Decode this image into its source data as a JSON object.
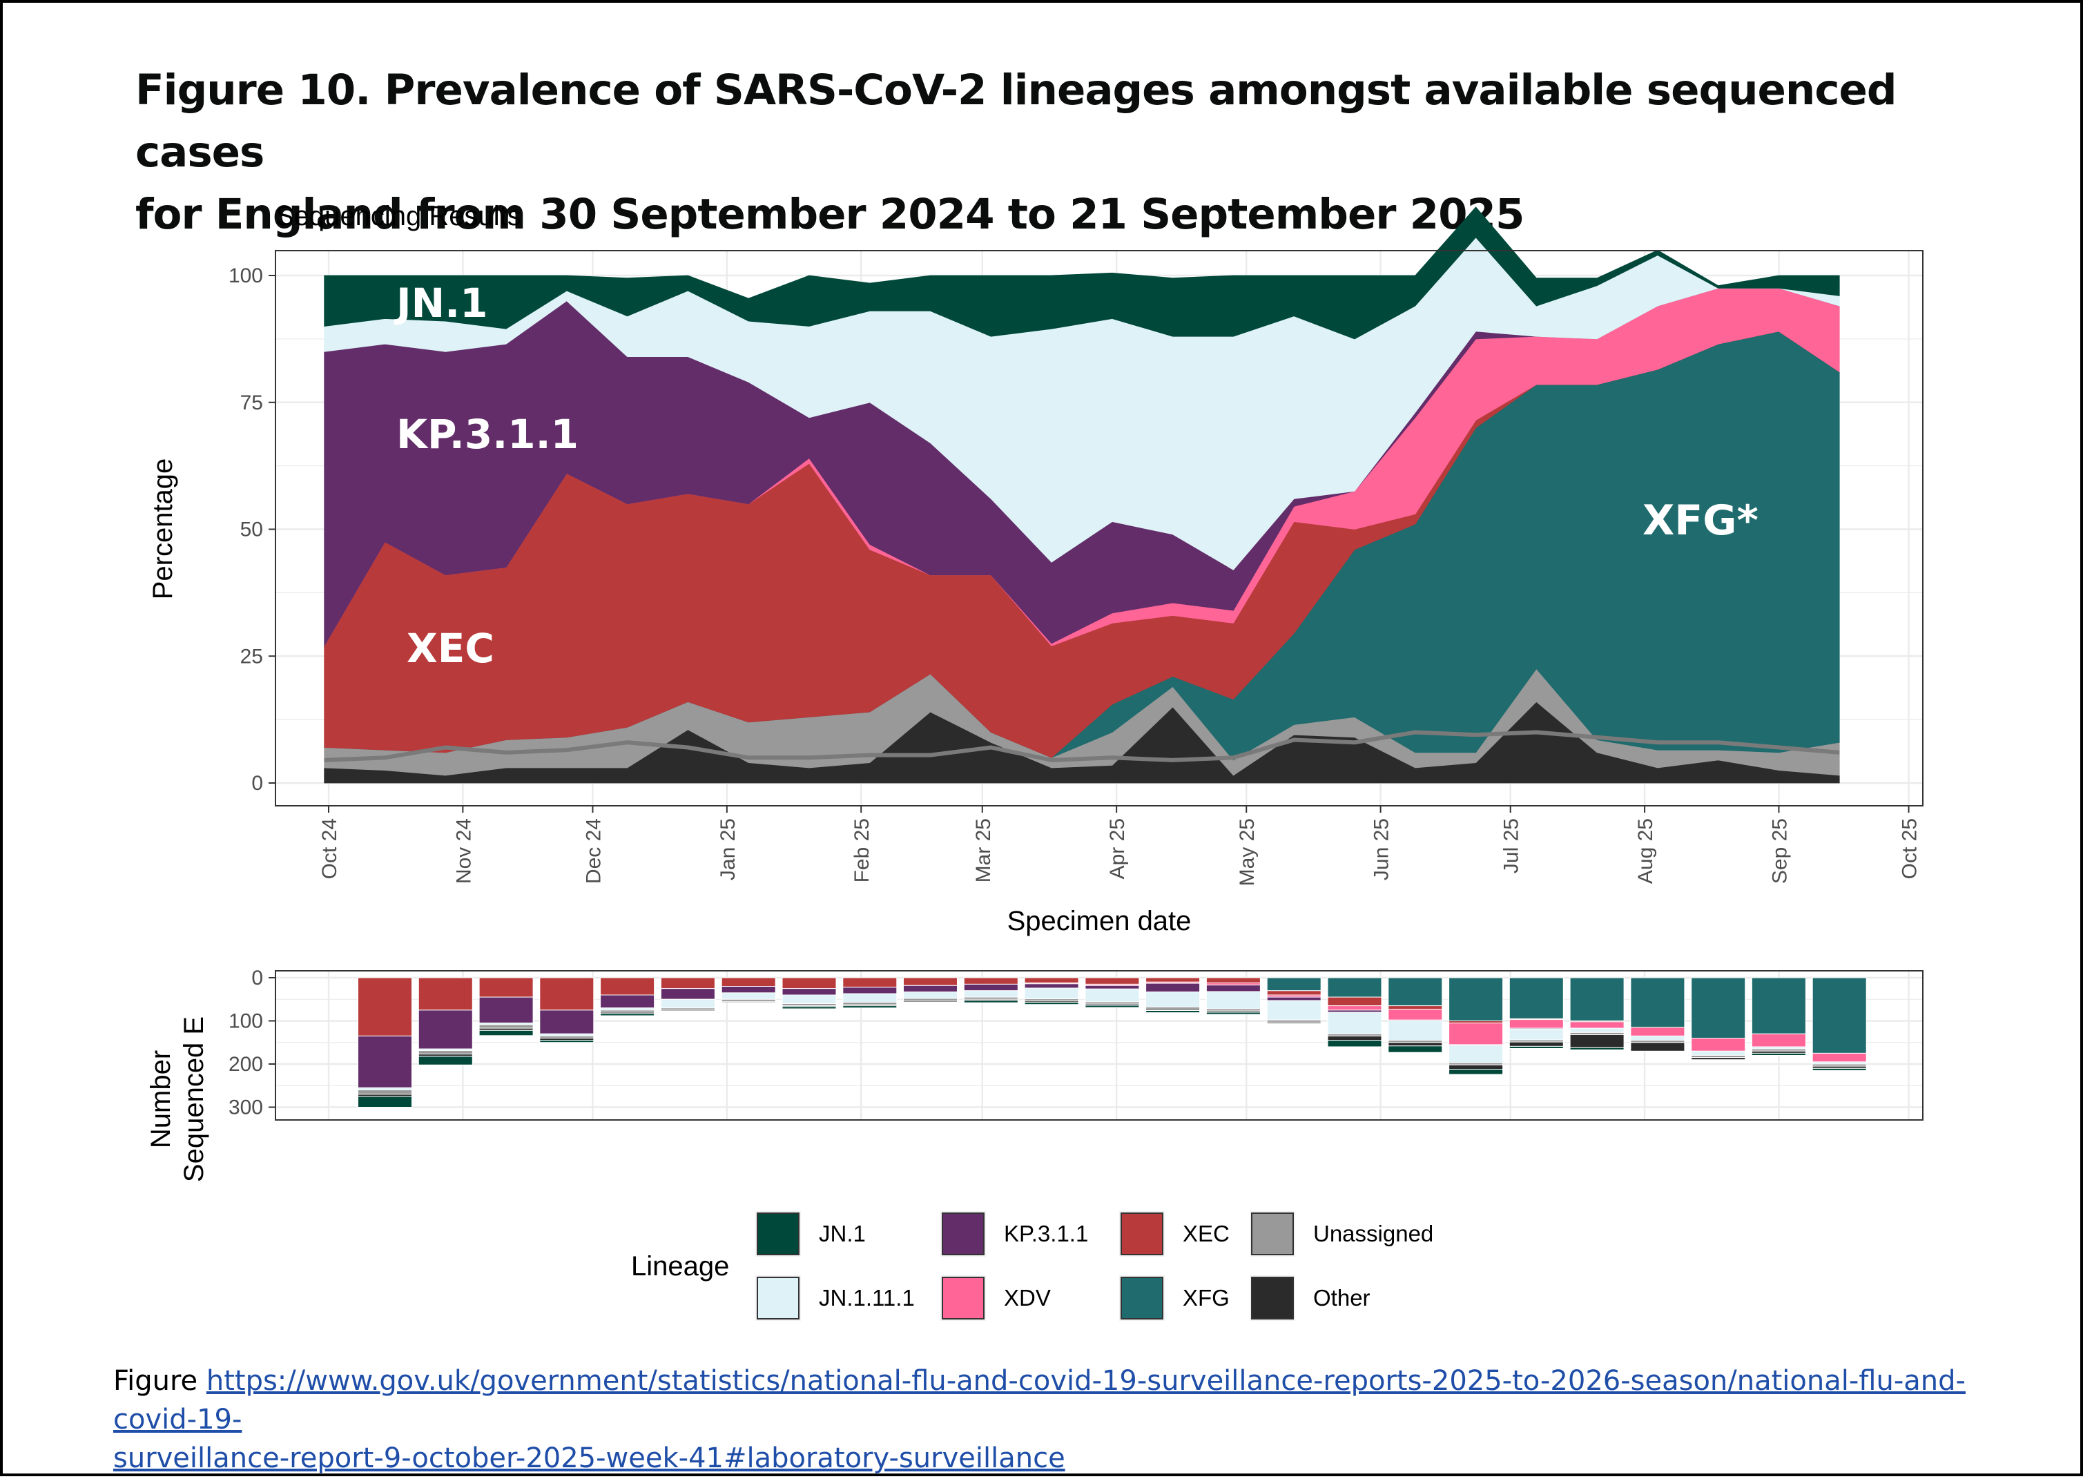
{
  "figure": {
    "title_line1": "Figure 10. Prevalence of SARS-CoV-2 lineages amongst available sequenced cases",
    "title_line2": "for England from 30 September 2024 to 21 September 2025",
    "caption_prefix": "Figure ",
    "caption_link_line1": "https://www.gov.uk/government/statistics/national-flu-and-covid-19-surveillance-reports-2025-to-2026-season/national-flu-and-covid-19-",
    "caption_link_line2": "surveillance-report-9-october-2025-week-41#laboratory-surveillance"
  },
  "colors": {
    "JN.1": "#00483a",
    "JN.1.11.1": "#dff2f7",
    "KP.3.1.1": "#622d69",
    "XDV": "#ff6596",
    "XEC": "#b83a3b",
    "XFG": "#1f6b6d",
    "Unassigned": "#999999",
    "Other": "#2b2b2b",
    "panel_border": "#333333",
    "grid": "#ebebeb",
    "trend_line": "#7a7a7a"
  },
  "chart_data": [
    {
      "type": "area",
      "stacking": "percent",
      "title": "Sequencing Results",
      "xlabel": "Specimen date",
      "ylabel": "Percentage",
      "ylim": [
        0,
        100
      ],
      "yticks": [
        0,
        25,
        50,
        75,
        100
      ],
      "x_tick_labels": [
        "Oct 24",
        "Nov 24",
        "Dec 24",
        "Jan 25",
        "Feb 25",
        "Mar 25",
        "Apr 25",
        "May 25",
        "Jun 25",
        "Jul 25",
        "Aug 25",
        "Sep 25",
        "Oct 25"
      ],
      "x_weeks": [
        "2024-09-30",
        "2024-10-14",
        "2024-10-28",
        "2024-11-11",
        "2024-11-25",
        "2024-12-09",
        "2024-12-23",
        "2025-01-06",
        "2025-01-20",
        "2025-02-03",
        "2025-02-17",
        "2025-03-03",
        "2025-03-17",
        "2025-03-31",
        "2025-04-14",
        "2025-04-28",
        "2025-05-12",
        "2025-05-26",
        "2025-06-09",
        "2025-06-23",
        "2025-07-07",
        "2025-07-21",
        "2025-08-04",
        "2025-08-18",
        "2025-09-01",
        "2025-09-15"
      ],
      "stack_order_bottom_to_top": [
        "Other",
        "Unassigned",
        "XFG",
        "XEC",
        "XDV",
        "KP.3.1.1",
        "JN.1.11.1",
        "JN.1"
      ],
      "series": [
        {
          "name": "Other",
          "values": [
            3,
            2.5,
            1.5,
            3,
            3,
            3,
            10.5,
            4,
            3,
            4,
            14,
            8,
            3,
            3.5,
            15,
            1.5,
            9.5,
            9,
            3,
            4,
            16,
            6,
            3,
            4.5,
            2.5,
            1.5
          ]
        },
        {
          "name": "Unassigned",
          "values": [
            4,
            4,
            4.5,
            5.5,
            6,
            8,
            5.5,
            8,
            10,
            10,
            7.5,
            2,
            2,
            6.5,
            4,
            3,
            2,
            4,
            3,
            2,
            6.5,
            2.5,
            3.5,
            2,
            3.5,
            6.5
          ]
        },
        {
          "name": "XFG",
          "values": [
            0,
            0,
            0,
            0,
            0,
            0,
            0,
            0,
            0,
            0,
            0,
            0,
            0,
            5.5,
            2,
            12,
            18,
            33,
            45,
            64,
            56,
            70,
            75,
            80,
            83,
            73
          ]
        },
        {
          "name": "XEC",
          "values": [
            20,
            41,
            35,
            34,
            52,
            44,
            41,
            43,
            50,
            32,
            19.5,
            31,
            22,
            16,
            12,
            15,
            22,
            4,
            2,
            1.5,
            0,
            0,
            0,
            0,
            0,
            0
          ]
        },
        {
          "name": "XDV",
          "values": [
            0,
            0,
            0,
            0,
            0,
            0,
            0,
            0,
            1,
            1,
            0,
            0,
            0.5,
            2,
            2.5,
            2.5,
            3,
            7.5,
            19,
            16,
            9.5,
            9,
            12.5,
            11,
            8.5,
            13
          ]
        },
        {
          "name": "KP.3.1.1",
          "values": [
            58,
            39,
            44,
            44,
            34,
            29,
            27,
            24,
            8,
            28,
            26,
            15,
            16,
            18,
            13.5,
            8,
            1.5,
            0,
            1,
            1.5,
            0,
            0,
            0,
            0,
            0,
            0
          ]
        },
        {
          "name": "JN.1.11.1",
          "values": [
            5,
            5,
            6,
            3,
            2,
            8,
            13,
            12,
            18,
            18,
            26,
            32,
            46,
            40,
            39,
            46,
            36,
            30,
            21,
            18.5,
            6,
            10.5,
            10,
            0,
            0,
            2
          ]
        },
        {
          "name": "JN.1",
          "values": [
            10,
            8.5,
            9,
            10.5,
            3,
            7.5,
            3,
            4.5,
            10,
            5.5,
            7,
            12,
            10.5,
            9,
            11.5,
            12,
            8,
            12.5,
            6,
            6,
            5.5,
            1.5,
            1,
            0.5,
            2.5,
            4
          ]
        }
      ],
      "trend_line": {
        "name": "rolling average",
        "values": [
          4.5,
          5,
          7,
          6,
          6.5,
          8,
          7,
          5,
          5,
          5.5,
          5.5,
          7,
          4.5,
          5,
          4.5,
          5,
          8.5,
          8,
          10,
          9.5,
          10,
          9,
          8,
          8,
          7,
          6
        ]
      },
      "area_labels": [
        "JN.1",
        "KP.3.1.1",
        "XEC",
        "XFG*"
      ]
    },
    {
      "type": "bar",
      "stacking": "count",
      "orientation": "downward",
      "ylabel_line1": "Number",
      "ylabel_line2": "Sequenced E",
      "ylim": [
        0,
        330
      ],
      "yticks": [
        0,
        100,
        200,
        300
      ],
      "x_weeks": [
        "2024-10-14",
        "2024-10-28",
        "2024-11-11",
        "2024-11-25",
        "2024-12-09",
        "2024-12-23",
        "2025-01-06",
        "2025-01-20",
        "2025-02-03",
        "2025-02-17",
        "2025-03-03",
        "2025-03-17",
        "2025-03-31",
        "2025-04-14",
        "2025-04-28",
        "2025-05-12",
        "2025-05-26",
        "2025-06-09",
        "2025-06-23",
        "2025-07-07",
        "2025-07-21",
        "2025-08-04",
        "2025-08-18",
        "2025-09-01",
        "2025-09-15"
      ],
      "stack_order_top_to_bottom": [
        "XFG",
        "XEC",
        "XDV",
        "KP.3.1.1",
        "JN.1.11.1",
        "Unassigned",
        "Other",
        "JN.1"
      ],
      "series": [
        {
          "name": "XFG",
          "values": [
            0,
            0,
            0,
            0,
            0,
            0,
            0,
            0,
            0,
            0,
            0,
            0,
            0,
            0,
            0,
            30,
            45,
            65,
            100,
            95,
            100,
            115,
            140,
            130,
            175
          ]
        },
        {
          "name": "XEC",
          "values": [
            135,
            75,
            45,
            75,
            40,
            25,
            20,
            25,
            22,
            18,
            15,
            12,
            15,
            10,
            12,
            10,
            20,
            8,
            5,
            2,
            2,
            0,
            0,
            0,
            0
          ]
        },
        {
          "name": "XDV",
          "values": [
            0,
            0,
            0,
            0,
            0,
            0,
            0,
            0,
            0,
            0,
            0,
            2,
            3,
            3,
            5,
            5,
            10,
            25,
            50,
            20,
            15,
            20,
            30,
            30,
            20
          ]
        },
        {
          "name": "KP.3.1.1",
          "values": [
            120,
            90,
            60,
            55,
            30,
            25,
            15,
            15,
            15,
            15,
            15,
            10,
            8,
            20,
            15,
            8,
            5,
            2,
            2,
            2,
            0,
            0,
            0,
            0,
            0
          ]
        },
        {
          "name": "JN.1.11.1",
          "values": [
            5,
            4,
            4,
            5,
            5,
            20,
            15,
            20,
            20,
            15,
            15,
            25,
            30,
            35,
            40,
            45,
            50,
            45,
            40,
            25,
            10,
            10,
            10,
            5,
            5
          ]
        },
        {
          "name": "Unassigned",
          "values": [
            10,
            8,
            8,
            5,
            5,
            5,
            5,
            5,
            5,
            5,
            5,
            5,
            5,
            5,
            5,
            5,
            5,
            5,
            5,
            5,
            5,
            5,
            5,
            5,
            5
          ]
        },
        {
          "name": "Other",
          "values": [
            5,
            5,
            5,
            5,
            3,
            2,
            2,
            2,
            3,
            3,
            3,
            3,
            3,
            3,
            3,
            3,
            10,
            8,
            10,
            10,
            30,
            20,
            5,
            5,
            5
          ]
        },
        {
          "name": "JN.1",
          "values": [
            25,
            20,
            12,
            5,
            5,
            0,
            0,
            5,
            5,
            0,
            5,
            5,
            5,
            5,
            5,
            0,
            15,
            15,
            12,
            5,
            5,
            0,
            0,
            5,
            5
          ]
        }
      ]
    }
  ],
  "legend": {
    "title": "Lineage",
    "items": [
      {
        "name": "JN.1"
      },
      {
        "name": "KP.3.1.1"
      },
      {
        "name": "XEC"
      },
      {
        "name": "Unassigned"
      },
      {
        "name": "JN.1.11.1"
      },
      {
        "name": "XDV"
      },
      {
        "name": "XFG"
      },
      {
        "name": "Other"
      }
    ]
  }
}
